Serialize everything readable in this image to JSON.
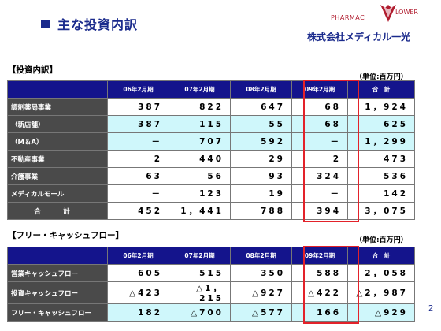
{
  "title": "主な投資内訳",
  "logo": {
    "top_left": "PHARMAC",
    "top_right": "LOWER",
    "company": "株式会社メディカル一光"
  },
  "investment": {
    "section_label": "【投資内訳】",
    "unit": "（単位:百万円）",
    "headers": [
      "",
      "06年2月期",
      "07年2月期",
      "08年2月期",
      "09年2月期",
      "合　計"
    ],
    "rows": [
      {
        "label": "調剤薬局事業",
        "values": [
          "387",
          "822",
          "647",
          "68",
          "1，924"
        ],
        "shade": "white"
      },
      {
        "label": "（新店舗）",
        "values": [
          "387",
          "115",
          "55",
          "68",
          "625"
        ],
        "shade": "light"
      },
      {
        "label": "（M＆A）",
        "values": [
          "－",
          "707",
          "592",
          "－",
          "1，299"
        ],
        "shade": "light"
      },
      {
        "label": "不動産事業",
        "values": [
          "2",
          "440",
          "29",
          "2",
          "473"
        ],
        "shade": "white"
      },
      {
        "label": "介護事業",
        "values": [
          "63",
          "56",
          "93",
          "324",
          "536"
        ],
        "shade": "white"
      },
      {
        "label": "メディカルモール",
        "values": [
          "－",
          "123",
          "19",
          "－",
          "142"
        ],
        "shade": "white"
      },
      {
        "label": "合　計",
        "values": [
          "452",
          "1，441",
          "788",
          "394",
          "3，075"
        ],
        "shade": "white",
        "center": true
      }
    ]
  },
  "cashflow": {
    "section_label": "【フリー・キャッシュフロー】",
    "unit": "（単位:百万円）",
    "headers": [
      "",
      "06年2月期",
      "07年2月期",
      "08年2月期",
      "09年2月期",
      "合　計"
    ],
    "rows": [
      {
        "label": "営業キャッシュフロー",
        "values": [
          "605",
          "515",
          "350",
          "588",
          "2，058"
        ],
        "shade": "white"
      },
      {
        "label": "投資キャッシュフロー",
        "values": [
          "△423",
          "△1，215",
          "△927",
          "△422",
          "△2，987"
        ],
        "shade": "white"
      },
      {
        "label": "フリー・キャッシュフロー",
        "values": [
          "182",
          "△700",
          "△577",
          "166",
          "△929"
        ],
        "shade": "light"
      }
    ]
  },
  "page_number": "2",
  "colors": {
    "header_bg": "#14148c",
    "label_bg": "#4a4a4a",
    "light_row": "#cff7fb",
    "highlight": "#e3222a",
    "title": "#1a2a8c"
  }
}
